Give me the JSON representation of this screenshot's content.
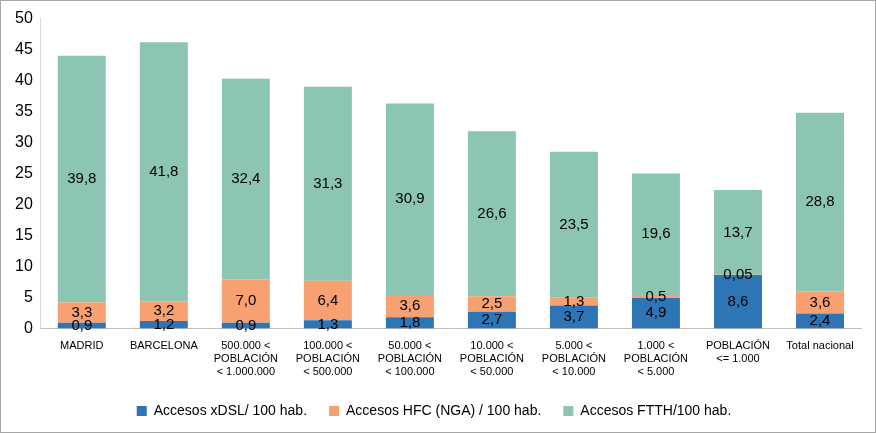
{
  "chart_data": {
    "type": "bar",
    "stacked": true,
    "grid": false,
    "legend": "bottom",
    "data_labels": true,
    "categories": [
      [
        "MADRID"
      ],
      [
        "BARCELONA"
      ],
      [
        "500.000 <",
        "POBLACIÓN",
        "< 1.000.000"
      ],
      [
        "100.000 <",
        "POBLACIÓN",
        "< 500.000"
      ],
      [
        "50.000 <",
        "POBLACIÓN",
        "< 100.000"
      ],
      [
        "10.000 <",
        "POBLACIÓN",
        "< 50.000"
      ],
      [
        "5.000 <",
        "POBLACIÓN",
        "< 10.000"
      ],
      [
        "1.000 <",
        "POBLACIÓN",
        "< 5.000"
      ],
      [
        "POBLACIÓN",
        "<= 1.000"
      ],
      [
        "Total nacional"
      ]
    ],
    "ylim": [
      0,
      50
    ],
    "yticks": [
      0,
      5,
      10,
      15,
      20,
      25,
      30,
      35,
      40,
      45,
      50
    ],
    "series": [
      {
        "name": "Accesos xDSL/ 100 hab.",
        "color": "#2e75b6",
        "values": [
          0.9,
          1.2,
          0.9,
          1.3,
          1.8,
          2.7,
          3.7,
          4.9,
          8.6,
          2.4
        ],
        "value_labels": [
          "0,9",
          "1,2",
          "0,9",
          "1,3",
          "1,8",
          "2,7",
          "3,7",
          "4,9",
          "8,6",
          "2,4"
        ]
      },
      {
        "name": "Accesos HFC (NGA) / 100 hab.",
        "color": "#f7a072",
        "values": [
          3.3,
          3.2,
          7.0,
          6.4,
          3.6,
          2.5,
          1.3,
          0.5,
          0.05,
          3.6
        ],
        "value_labels": [
          "3,3",
          "3,2",
          "7,0",
          "6,4",
          "3,6",
          "2,5",
          "1,3",
          "0,5",
          "0,05",
          "3,6"
        ]
      },
      {
        "name": "Accesos FTTH/100 hab.",
        "color": "#8cc6b3",
        "values": [
          39.8,
          41.8,
          32.4,
          31.3,
          30.9,
          26.6,
          23.5,
          19.6,
          13.7,
          28.8
        ],
        "value_labels": [
          "39,8",
          "41,8",
          "32,4",
          "31,3",
          "30,9",
          "26,6",
          "23,5",
          "19,6",
          "13,7",
          "28,8"
        ]
      }
    ]
  }
}
